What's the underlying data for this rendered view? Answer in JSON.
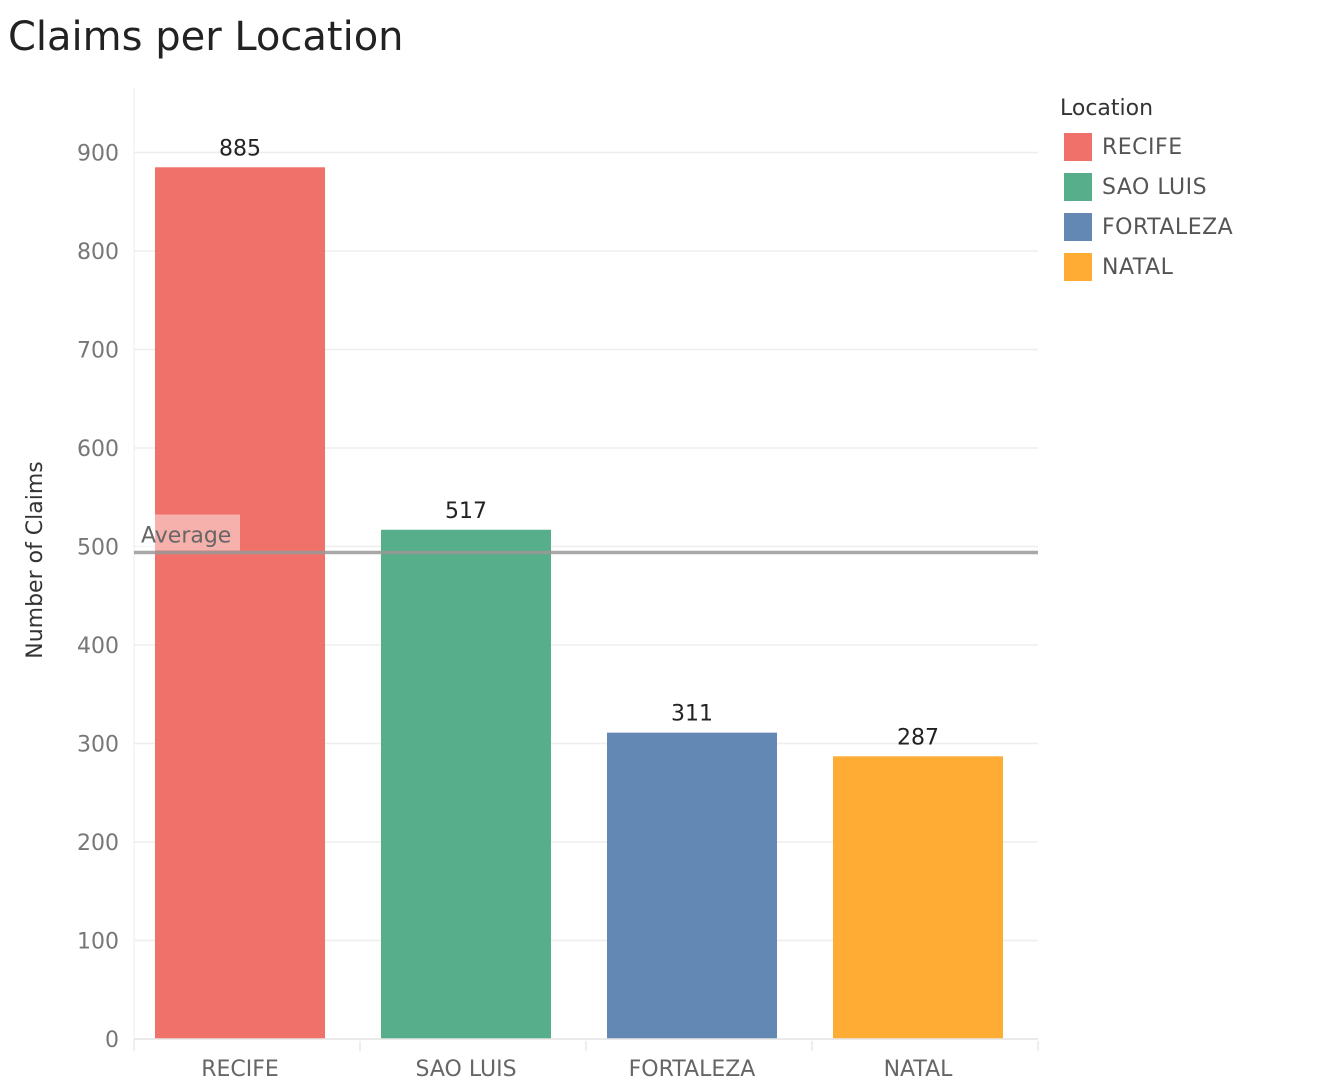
{
  "chart_data": {
    "type": "bar",
    "title": "Claims per Location",
    "ylabel": "Number of Claims",
    "xlabel": "",
    "categories": [
      "RECIFE",
      "SAO LUIS",
      "FORTALEZA",
      "NATAL"
    ],
    "values": [
      885,
      517,
      311,
      287
    ],
    "colors": [
      "#f0716a",
      "#57ae8a",
      "#6488b4",
      "#ffac34"
    ],
    "ylim": [
      0,
      960
    ],
    "yticks": [
      0,
      100,
      200,
      300,
      400,
      500,
      600,
      700,
      800,
      900
    ],
    "grid": true,
    "reference_line": {
      "label": "Average",
      "value": 500
    },
    "legend": {
      "title": "Location",
      "placement": "top-right",
      "items": [
        "RECIFE",
        "SAO LUIS",
        "FORTALEZA",
        "NATAL"
      ]
    }
  }
}
